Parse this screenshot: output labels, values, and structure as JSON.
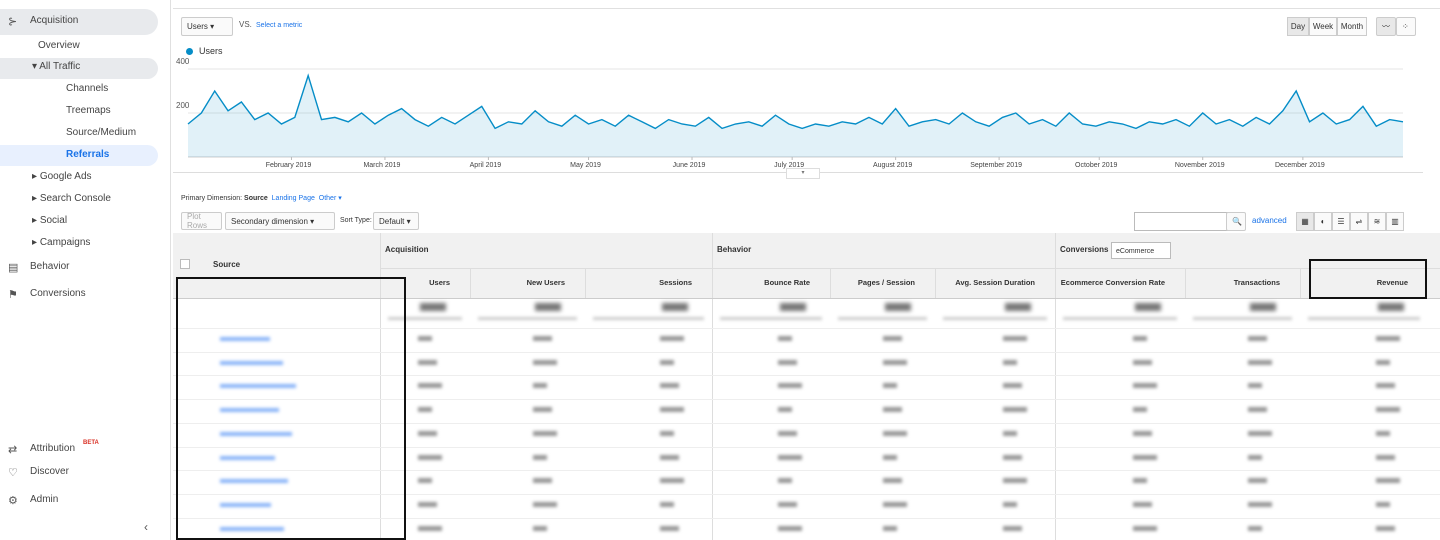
{
  "sidebar": {
    "items": [
      "Acquisition",
      "Overview",
      "All Traffic",
      "Channels",
      "Treemaps",
      "Source/Medium",
      "Referrals",
      "Google Ads",
      "Search Console",
      "Social",
      "Campaigns",
      "Behavior",
      "Conversions"
    ],
    "bottom": [
      {
        "label": "Attribution",
        "badge": "BETA"
      },
      {
        "label": "Discover"
      },
      {
        "label": "Admin"
      }
    ]
  },
  "controls": {
    "metric": "Users",
    "vs": "VS.",
    "select_metric": "Select a metric",
    "periods": [
      "Day",
      "Week",
      "Month"
    ]
  },
  "chart_data": {
    "type": "line",
    "x": [
      0,
      4,
      8,
      12,
      16,
      20,
      24,
      28,
      32,
      36,
      40,
      44,
      48,
      52,
      56,
      60,
      64,
      68,
      72,
      76,
      80,
      84,
      88,
      92,
      96,
      100,
      104,
      108,
      112,
      116,
      120,
      124,
      128,
      132,
      136,
      140,
      144,
      148,
      152,
      156,
      160,
      164,
      168,
      172,
      176,
      180,
      184,
      188,
      192,
      196,
      200,
      204,
      208,
      212,
      216,
      220,
      224,
      228,
      232,
      236,
      240,
      244,
      248,
      252,
      256,
      260,
      264,
      268,
      272,
      276,
      280,
      284,
      288,
      292,
      296,
      300,
      304,
      308,
      312,
      316,
      320,
      324,
      328,
      332,
      336,
      340,
      344,
      348,
      352,
      356,
      360,
      364
    ],
    "series": [
      {
        "name": "Users",
        "color": "#058dc7",
        "values": [
          150,
          200,
          300,
          210,
          250,
          170,
          200,
          150,
          180,
          370,
          170,
          180,
          160,
          200,
          150,
          190,
          220,
          170,
          140,
          180,
          150,
          190,
          230,
          130,
          160,
          150,
          210,
          160,
          140,
          190,
          150,
          170,
          140,
          190,
          160,
          130,
          170,
          150,
          140,
          180,
          130,
          150,
          160,
          140,
          190,
          150,
          130,
          150,
          140,
          160,
          150,
          180,
          150,
          220,
          140,
          160,
          170,
          150,
          200,
          160,
          140,
          180,
          200,
          150,
          170,
          140,
          200,
          150,
          140,
          160,
          150,
          130,
          160,
          150,
          170,
          140,
          200,
          150,
          170,
          140,
          180,
          150,
          210,
          300,
          160,
          200,
          150,
          170,
          230,
          140,
          170,
          160
        ]
      }
    ],
    "xlim": [
      0,
      364
    ],
    "xticks": [
      {
        "value": 31,
        "label": "February 2019"
      },
      {
        "value": 59,
        "label": "March 2019"
      },
      {
        "value": 90,
        "label": "April 2019"
      },
      {
        "value": 120,
        "label": "May 2019"
      },
      {
        "value": 151,
        "label": "June 2019"
      },
      {
        "value": 181,
        "label": "July 2019"
      },
      {
        "value": 212,
        "label": "August 2019"
      },
      {
        "value": 243,
        "label": "September 2019"
      },
      {
        "value": 273,
        "label": "October 2019"
      },
      {
        "value": 304,
        "label": "November 2019"
      },
      {
        "value": 334,
        "label": "December 2019"
      }
    ],
    "ylim": [
      0,
      400
    ],
    "yticks": [
      200,
      400
    ],
    "grid": true
  },
  "explorer": {
    "primary_label": "Primary Dimension:",
    "primary": "Source",
    "links": [
      "Landing Page",
      "Other"
    ],
    "plot_rows": "Plot Rows",
    "secondary": "Secondary dimension",
    "sort_label": "Sort Type:",
    "sort": "Default",
    "advanced": "advanced"
  },
  "table": {
    "source": "Source",
    "groups": [
      "Acquisition",
      "Behavior",
      "Conversions"
    ],
    "conversion_select": "eCommerce",
    "columns": [
      "Users",
      "New Users",
      "Sessions",
      "Bounce Rate",
      "Pages / Session",
      "Avg. Session Duration",
      "Ecommerce Conversion Rate",
      "Transactions",
      "Revenue"
    ]
  }
}
